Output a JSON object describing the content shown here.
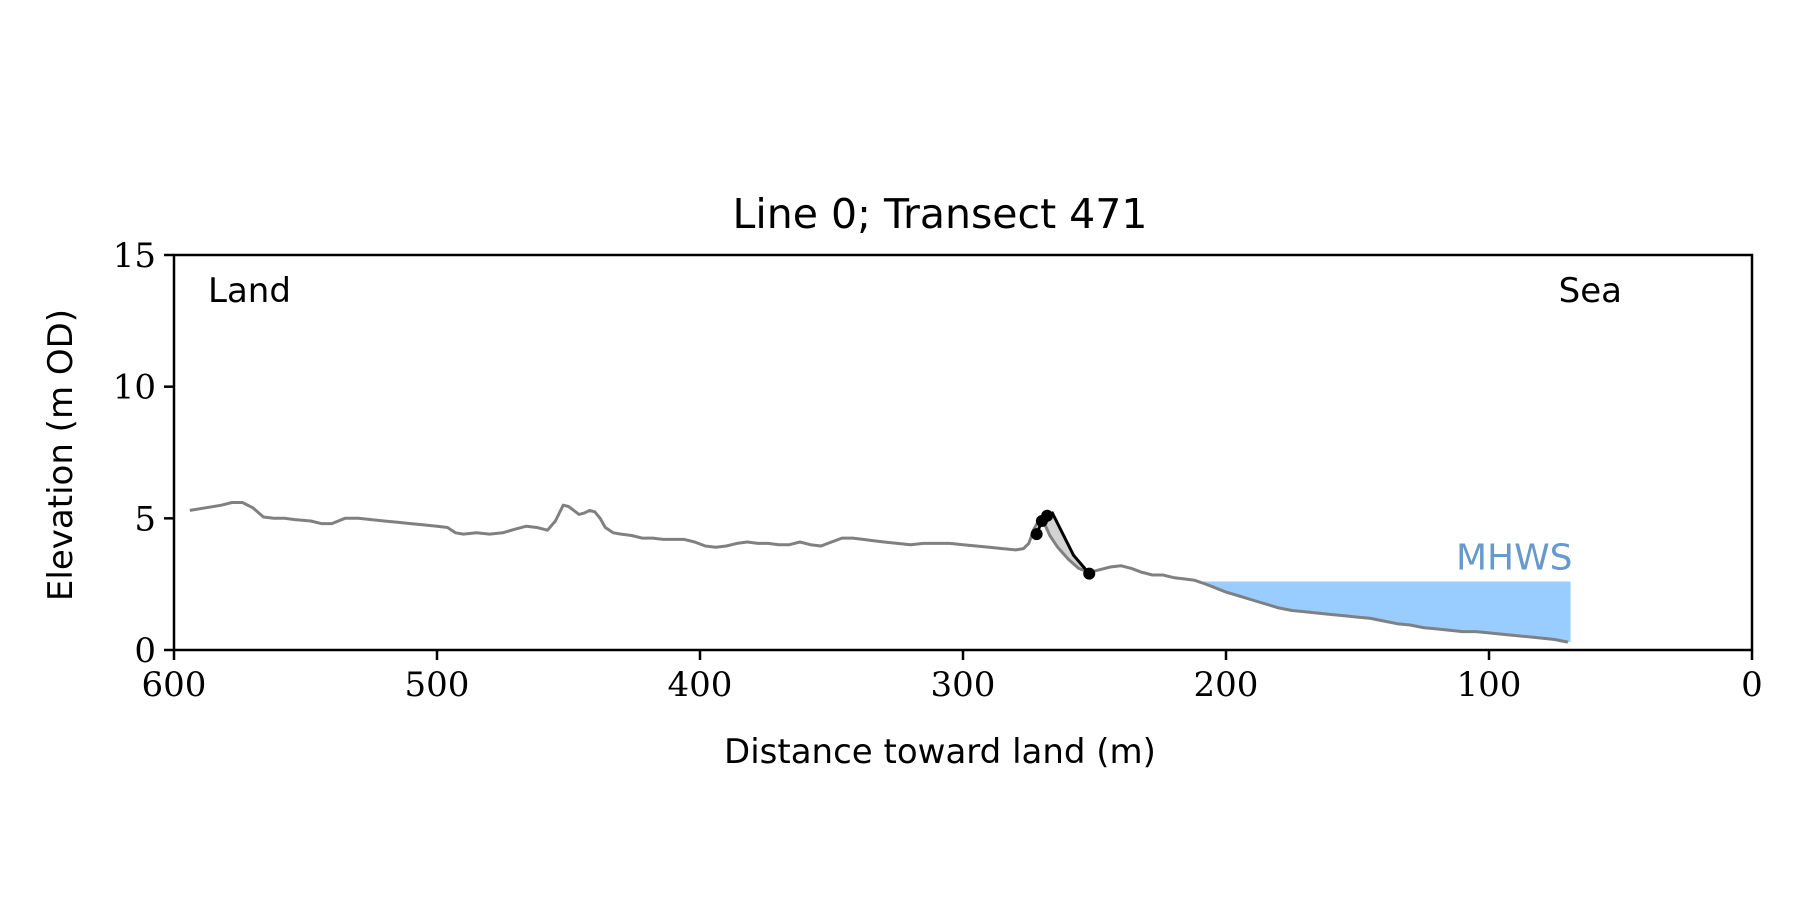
{
  "chart_data": {
    "type": "line",
    "title": "Line 0; Transect 471",
    "xlabel": "Distance toward land (m)",
    "ylabel": "Elevation (m OD)",
    "xlim": [
      600,
      0
    ],
    "ylim": [
      0,
      15
    ],
    "x_reversed": true,
    "xticks": [
      600,
      500,
      400,
      300,
      200,
      100,
      0
    ],
    "yticks": [
      0,
      5,
      10,
      15
    ],
    "grid": false,
    "annotations": {
      "land": "Land",
      "sea": "Sea",
      "mhws": "MHWS"
    },
    "colors": {
      "profile": "#808080",
      "cliff": "#000000",
      "cliff_fill": "#d3d3d3",
      "water": "#99ccff",
      "mhws_label": "#6699cc",
      "axis": "#000000"
    },
    "mhws": {
      "elevation": 2.6,
      "x_start": 209,
      "x_end": 69
    },
    "profile": {
      "name": "",
      "x": [
        594,
        588,
        582,
        578,
        574,
        570,
        566,
        562,
        558,
        554,
        548,
        544,
        540,
        535,
        530,
        525,
        520,
        515,
        510,
        505,
        500,
        496,
        493,
        490,
        485,
        480,
        475,
        470,
        466,
        462,
        458,
        455,
        452,
        450,
        448,
        446,
        444,
        442,
        440,
        438,
        436,
        433,
        430,
        426,
        422,
        418,
        414,
        410,
        406,
        402,
        398,
        394,
        390,
        386,
        382,
        378,
        374,
        370,
        366,
        362,
        358,
        354,
        350,
        346,
        342,
        338,
        334,
        330,
        325,
        320,
        315,
        310,
        305,
        300,
        295,
        290,
        285,
        280,
        277,
        275,
        273,
        271,
        269,
        267,
        264,
        260,
        256,
        252,
        248,
        244,
        240,
        236,
        232,
        228,
        224,
        220,
        216,
        212,
        209,
        205,
        200,
        195,
        190,
        185,
        180,
        175,
        170,
        165,
        160,
        155,
        150,
        145,
        140,
        135,
        130,
        125,
        120,
        115,
        110,
        105,
        100,
        95,
        90,
        85,
        80,
        75,
        70
      ],
      "y": [
        5.3,
        5.4,
        5.5,
        5.6,
        5.6,
        5.4,
        5.05,
        5.0,
        5.0,
        4.95,
        4.9,
        4.8,
        4.8,
        5.0,
        5.0,
        4.95,
        4.9,
        4.85,
        4.8,
        4.75,
        4.7,
        4.65,
        4.45,
        4.4,
        4.45,
        4.4,
        4.45,
        4.6,
        4.7,
        4.65,
        4.55,
        4.9,
        5.5,
        5.45,
        5.3,
        5.15,
        5.2,
        5.3,
        5.25,
        5.0,
        4.65,
        4.45,
        4.4,
        4.35,
        4.25,
        4.25,
        4.2,
        4.2,
        4.2,
        4.1,
        3.95,
        3.9,
        3.95,
        4.05,
        4.1,
        4.05,
        4.05,
        4.0,
        4.0,
        4.1,
        4.0,
        3.95,
        4.1,
        4.25,
        4.25,
        4.2,
        4.15,
        4.1,
        4.05,
        4.0,
        4.05,
        4.05,
        4.05,
        4.0,
        3.95,
        3.9,
        3.85,
        3.8,
        3.85,
        4.05,
        4.6,
        4.95,
        4.8,
        4.35,
        3.9,
        3.45,
        3.1,
        2.95,
        3.05,
        3.15,
        3.2,
        3.1,
        2.95,
        2.85,
        2.85,
        2.75,
        2.7,
        2.65,
        2.55,
        2.4,
        2.2,
        2.05,
        1.9,
        1.75,
        1.6,
        1.5,
        1.45,
        1.4,
        1.35,
        1.3,
        1.25,
        1.2,
        1.1,
        1.0,
        0.95,
        0.85,
        0.8,
        0.75,
        0.7,
        0.7,
        0.65,
        0.6,
        0.55,
        0.5,
        0.45,
        0.4,
        0.3
      ]
    },
    "cliff_line": {
      "x": [
        272,
        270,
        268,
        266,
        262,
        258,
        252
      ],
      "y": [
        4.4,
        4.9,
        5.1,
        5.2,
        4.4,
        3.6,
        2.9
      ]
    },
    "cliff_points": {
      "x": [
        272,
        270,
        268,
        252
      ],
      "y": [
        4.4,
        4.9,
        5.1,
        2.9
      ]
    }
  }
}
